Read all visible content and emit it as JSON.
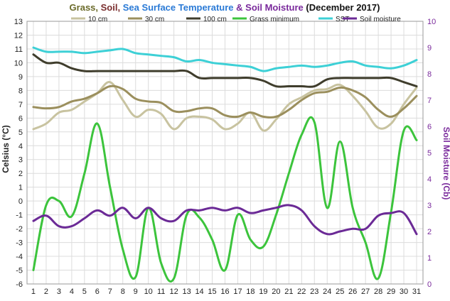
{
  "chart_data": {
    "type": "line",
    "title_parts": [
      {
        "text": "Grass, ",
        "color": "#6b6b2a"
      },
      {
        "text": "Soil, ",
        "color": "#7a2e2e"
      },
      {
        "text": "Sea Surface Temperature",
        "color": "#2a7ad6"
      },
      {
        "text": " & Soil Moisture ",
        "color": "#7a2a9c"
      },
      {
        "text": "(December 2017)",
        "color": "#111111"
      }
    ],
    "ylabel": "Celsius (°C)",
    "y2label": "Soil Moisture (Cb)",
    "xlabel": "",
    "x": [
      1,
      2,
      3,
      4,
      5,
      6,
      7,
      8,
      9,
      10,
      11,
      12,
      13,
      14,
      15,
      16,
      17,
      18,
      19,
      20,
      21,
      22,
      23,
      24,
      25,
      26,
      27,
      28,
      29,
      30,
      31
    ],
    "ylim": [
      -6,
      13
    ],
    "y2lim": [
      0,
      10
    ],
    "yticks": [
      -6,
      -5,
      -4,
      -3,
      -2,
      -1,
      0,
      1,
      2,
      3,
      4,
      5,
      6,
      7,
      8,
      9,
      10,
      11,
      12,
      13
    ],
    "y2ticks": [
      0,
      1,
      2,
      3,
      4,
      5,
      6,
      7,
      8,
      9,
      10
    ],
    "grid": true,
    "legend_position": "top",
    "series": [
      {
        "name": "10 cm",
        "color": "#c8c3a0",
        "axis": "left",
        "values": [
          5.2,
          5.6,
          6.4,
          6.6,
          7.2,
          7.8,
          8.6,
          7.3,
          6.1,
          6.6,
          6.3,
          5.2,
          6.0,
          6.1,
          5.9,
          5.2,
          5.6,
          6.4,
          5.1,
          5.9,
          7.0,
          7.5,
          8.0,
          8.1,
          8.4,
          7.6,
          6.5,
          5.3,
          5.6,
          7.0,
          8.2
        ]
      },
      {
        "name": "30 cm",
        "color": "#9b8f5d",
        "axis": "left",
        "values": [
          6.8,
          6.7,
          6.8,
          7.2,
          7.4,
          7.8,
          8.3,
          8.1,
          7.4,
          7.2,
          7.1,
          6.5,
          6.5,
          6.7,
          6.7,
          6.2,
          6.1,
          6.4,
          6.1,
          6.1,
          6.6,
          7.3,
          7.8,
          7.9,
          8.2,
          8.0,
          7.5,
          6.6,
          6.1,
          6.7,
          7.6
        ]
      },
      {
        "name": "100 cm",
        "color": "#3f3d2c",
        "axis": "left",
        "values": [
          10.6,
          10.0,
          10.0,
          9.6,
          9.4,
          9.4,
          9.4,
          9.4,
          9.4,
          9.4,
          9.4,
          9.4,
          9.4,
          8.9,
          8.9,
          8.9,
          8.9,
          8.9,
          8.7,
          8.3,
          8.3,
          8.3,
          8.3,
          8.8,
          8.9,
          8.9,
          8.9,
          8.9,
          8.9,
          8.6,
          8.3
        ]
      },
      {
        "name": "Grass minimum",
        "color": "#3cc43c",
        "axis": "left",
        "values": [
          -5.0,
          -0.3,
          0.0,
          -1.1,
          2.0,
          5.6,
          1.0,
          -3.5,
          -5.5,
          -0.5,
          -4.5,
          -5.6,
          -1.0,
          -1.2,
          -2.8,
          -5.0,
          -1.0,
          -2.8,
          -3.3,
          -1.0,
          2.0,
          4.8,
          5.7,
          -0.5,
          4.3,
          -0.5,
          -3.0,
          -5.6,
          -0.8,
          5.1,
          4.4
        ]
      },
      {
        "name": "SST",
        "color": "#3dd0d6",
        "axis": "left",
        "values": [
          11.1,
          10.8,
          10.8,
          10.8,
          10.7,
          10.8,
          10.9,
          11.0,
          10.7,
          10.6,
          10.5,
          10.4,
          10.1,
          10.2,
          10.0,
          9.9,
          9.8,
          9.7,
          9.4,
          9.6,
          9.7,
          9.8,
          9.7,
          9.8,
          10.0,
          10.1,
          9.8,
          9.7,
          9.6,
          9.8,
          10.2
        ]
      },
      {
        "name": "Soil moisture",
        "color": "#6b2a96",
        "axis": "right",
        "values": [
          2.4,
          2.6,
          2.2,
          2.2,
          2.5,
          2.8,
          2.6,
          2.9,
          2.5,
          2.9,
          2.5,
          2.4,
          2.8,
          2.8,
          2.9,
          2.8,
          2.9,
          2.7,
          2.8,
          2.9,
          3.0,
          2.8,
          2.2,
          1.9,
          2.0,
          2.1,
          2.1,
          2.6,
          2.7,
          2.7,
          1.9
        ]
      }
    ]
  }
}
